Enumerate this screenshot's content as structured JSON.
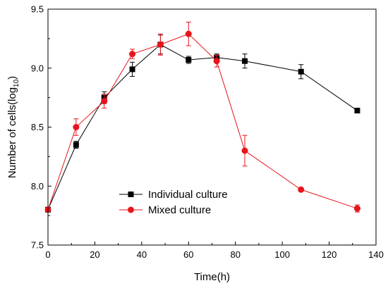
{
  "chart_data": {
    "type": "line",
    "xlabel": "Time(h)",
    "ylabel": {
      "main": "Number of cells(log",
      "sub": "10",
      "close": ")"
    },
    "xlim": [
      0,
      140
    ],
    "ylim": [
      7.5,
      9.5
    ],
    "xticks": [
      "0",
      "20",
      "40",
      "60",
      "80",
      "100",
      "120",
      "140"
    ],
    "yticks": [
      "7.5",
      "8.0",
      "8.5",
      "9.0",
      "9.5"
    ],
    "grid": false,
    "legend_position": "lower-left",
    "series": [
      {
        "name": "Individual culture",
        "color": "#000000",
        "marker": "square",
        "x": [
          0,
          12,
          24,
          36,
          48,
          60,
          72,
          84,
          108,
          132
        ],
        "y": [
          7.8,
          8.35,
          8.75,
          8.99,
          9.2,
          9.07,
          9.09,
          9.06,
          8.97,
          8.64
        ],
        "err": [
          0,
          0.03,
          0.05,
          0.06,
          0.08,
          0.03,
          0.03,
          0.06,
          0.06,
          0.01
        ]
      },
      {
        "name": "Mixed culture",
        "color": "#e8141b",
        "marker": "circle",
        "x": [
          0,
          12,
          24,
          36,
          48,
          60,
          72,
          84,
          108,
          132
        ],
        "y": [
          7.8,
          8.5,
          8.72,
          9.12,
          9.2,
          9.29,
          9.06,
          8.3,
          7.97,
          7.81
        ],
        "err": [
          0.01,
          0.07,
          0.06,
          0.04,
          0.09,
          0.1,
          0.05,
          0.13,
          0.01,
          0.03
        ]
      }
    ]
  }
}
